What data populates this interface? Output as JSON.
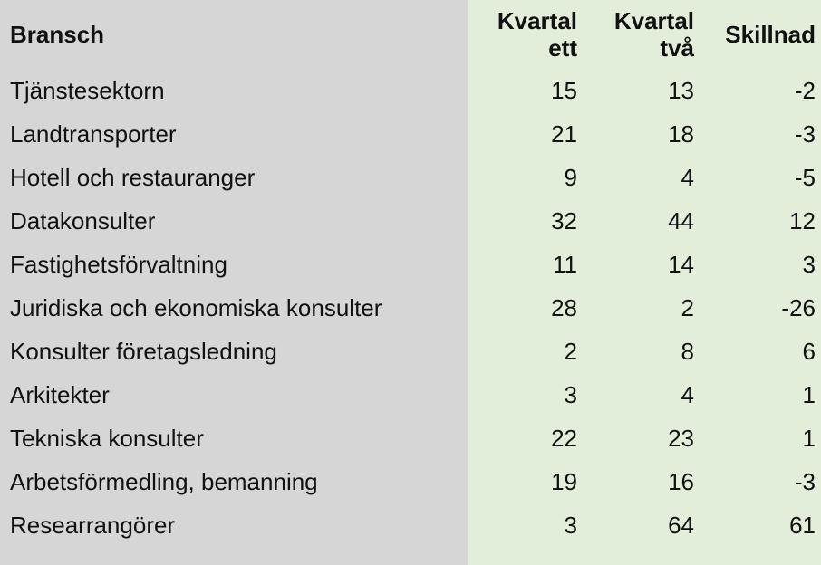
{
  "table": {
    "header": {
      "bransch": "Bransch",
      "q1": "Kvartal ett",
      "q2": "Kvartal två",
      "diff": "Skillnad"
    },
    "rows": [
      {
        "bransch": "Tjänstesektorn",
        "q1": "15",
        "q2": "13",
        "diff": "-2"
      },
      {
        "bransch": "Landtransporter",
        "q1": "21",
        "q2": "18",
        "diff": "-3"
      },
      {
        "bransch": "Hotell och restauranger",
        "q1": "9",
        "q2": "4",
        "diff": "-5"
      },
      {
        "bransch": "Datakonsulter",
        "q1": "32",
        "q2": "44",
        "diff": "12"
      },
      {
        "bransch": "Fastighetsförvaltning",
        "q1": "11",
        "q2": "14",
        "diff": "3"
      },
      {
        "bransch": "Juridiska och ekonomiska konsulter",
        "q1": "28",
        "q2": "2",
        "diff": "-26"
      },
      {
        "bransch": "Konsulter företagsledning",
        "q1": "2",
        "q2": "8",
        "diff": "6"
      },
      {
        "bransch": "Arkitekter",
        "q1": "3",
        "q2": "4",
        "diff": "1"
      },
      {
        "bransch": "Tekniska konsulter",
        "q1": "22",
        "q2": "23",
        "diff": "1"
      },
      {
        "bransch": "Arbetsförmedling, bemanning",
        "q1": "19",
        "q2": "16",
        "diff": "-3"
      },
      {
        "bransch": "Researrangörer",
        "q1": "3",
        "q2": "64",
        "diff": "61"
      }
    ]
  },
  "chart_data": {
    "type": "table",
    "title": "",
    "columns": [
      "Bransch",
      "Kvartal ett",
      "Kvartal två",
      "Skillnad"
    ],
    "categories": [
      "Tjänstesektorn",
      "Landtransporter",
      "Hotell och restauranger",
      "Datakonsulter",
      "Fastighetsförvaltning",
      "Juridiska och ekonomiska konsulter",
      "Konsulter företagsledning",
      "Arkitekter",
      "Tekniska konsulter",
      "Arbetsförmedling, bemanning",
      "Researrangörer"
    ],
    "series": [
      {
        "name": "Kvartal ett",
        "values": [
          15,
          21,
          9,
          32,
          11,
          28,
          2,
          3,
          22,
          19,
          3
        ]
      },
      {
        "name": "Kvartal två",
        "values": [
          13,
          18,
          4,
          44,
          14,
          2,
          8,
          4,
          23,
          16,
          64
        ]
      },
      {
        "name": "Skillnad",
        "values": [
          -2,
          -3,
          -5,
          12,
          3,
          -26,
          6,
          1,
          1,
          -3,
          61
        ]
      }
    ]
  },
  "colors": {
    "left_bg": "#d6d6d6",
    "right_bg": "#e3eeda",
    "text": "#111111"
  }
}
